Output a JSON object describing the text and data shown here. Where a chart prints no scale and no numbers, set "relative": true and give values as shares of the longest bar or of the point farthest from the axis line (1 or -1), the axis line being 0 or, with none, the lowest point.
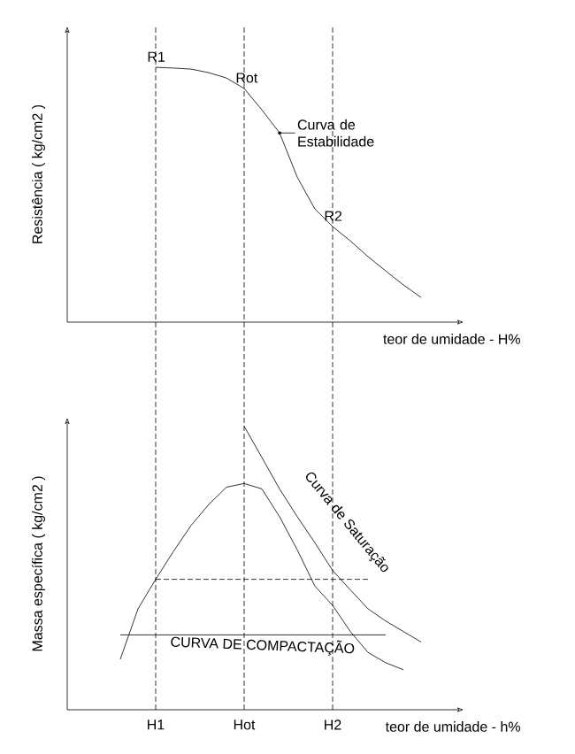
{
  "chart_data": [
    {
      "type": "line",
      "xlabel": "teor de umidade - H%",
      "ylabel": "Resistência ( kg/cm2 )",
      "relative": true,
      "categories": [
        null,
        null,
        null,
        null,
        null,
        null,
        null,
        null,
        null,
        null,
        null,
        null,
        null,
        null,
        null,
        null,
        null,
        null,
        null,
        null,
        null,
        null,
        null
      ],
      "series": [
        {
          "color": "#000000",
          "values": [
            null,
            null,
            null,
            null,
            null,
            1,
            0.997,
            0.993,
            0.979,
            0.958,
            0.917,
            0.833,
            0.743,
            0.569,
            0.444,
            0.375,
            0.319,
            0.257,
            0.201,
            0.146,
            0.097,
            null,
            null
          ]
        }
      ],
      "annotations": [
        {
          "text": "R1",
          "y": 1
        },
        {
          "text": "Rot",
          "y": 0.917
        },
        "Curva de Estabilidade",
        {
          "text": "R2",
          "y": 0.375
        }
      ]
    },
    {
      "type": "line",
      "xlabel": "teor de umidade - h%",
      "ylabel": "Massa específica ( kg/cm2 )",
      "relative": true,
      "tick_labels": "x",
      "categories": [
        null,
        null,
        null,
        null,
        null,
        "H1",
        null,
        null,
        null,
        null,
        "Hot",
        null,
        null,
        null,
        null,
        "H2",
        null,
        null,
        null,
        null,
        null,
        null,
        null
      ],
      "series": [
        {
          "name": "CURVA DE COMPACTAÇÃO",
          "color": "#000000",
          "values": [
            null,
            null,
            null,
            0.178,
            0.356,
            0.46,
            0.558,
            0.65,
            0.724,
            0.785,
            0.798,
            0.779,
            0.681,
            0.564,
            0.436,
            0.368,
            0.276,
            0.202,
            0.166,
            0.141,
            null,
            null,
            null
          ]
        },
        {
          "name": "Curva de Saturação",
          "color": "#000000",
          "values": [
            null,
            null,
            null,
            null,
            null,
            null,
            null,
            null,
            null,
            null,
            1,
            0.89,
            0.779,
            0.681,
            0.589,
            0.491,
            0.423,
            0.356,
            0.313,
            0.276,
            0.239,
            null,
            null
          ]
        },
        {
          "color": "#000000",
          "line_style": "dashed",
          "values": [
            null,
            null,
            null,
            null,
            null,
            0.46,
            0.46,
            0.46,
            0.46,
            0.46,
            0.46,
            0.46,
            0.46,
            0.46,
            0.46,
            0.46,
            0.46,
            0.46,
            null,
            null,
            null,
            null,
            null
          ]
        },
        {
          "color": "#000000",
          "values": [
            null,
            null,
            null,
            0.264,
            0.264,
            0.264,
            0.264,
            0.264,
            0.264,
            0.264,
            0.264,
            0.264,
            0.264,
            0.264,
            0.264,
            0.264,
            0.264,
            0.264,
            0.264,
            null,
            null,
            null,
            null
          ]
        }
      ],
      "ref_lines": [
        {
          "axis": "x",
          "value": "H1",
          "line_style": "dashed"
        },
        {
          "axis": "x",
          "value": "Hot",
          "line_style": "dashed"
        },
        {
          "axis": "x",
          "value": "H2",
          "line_style": "dashed"
        }
      ]
    }
  ]
}
